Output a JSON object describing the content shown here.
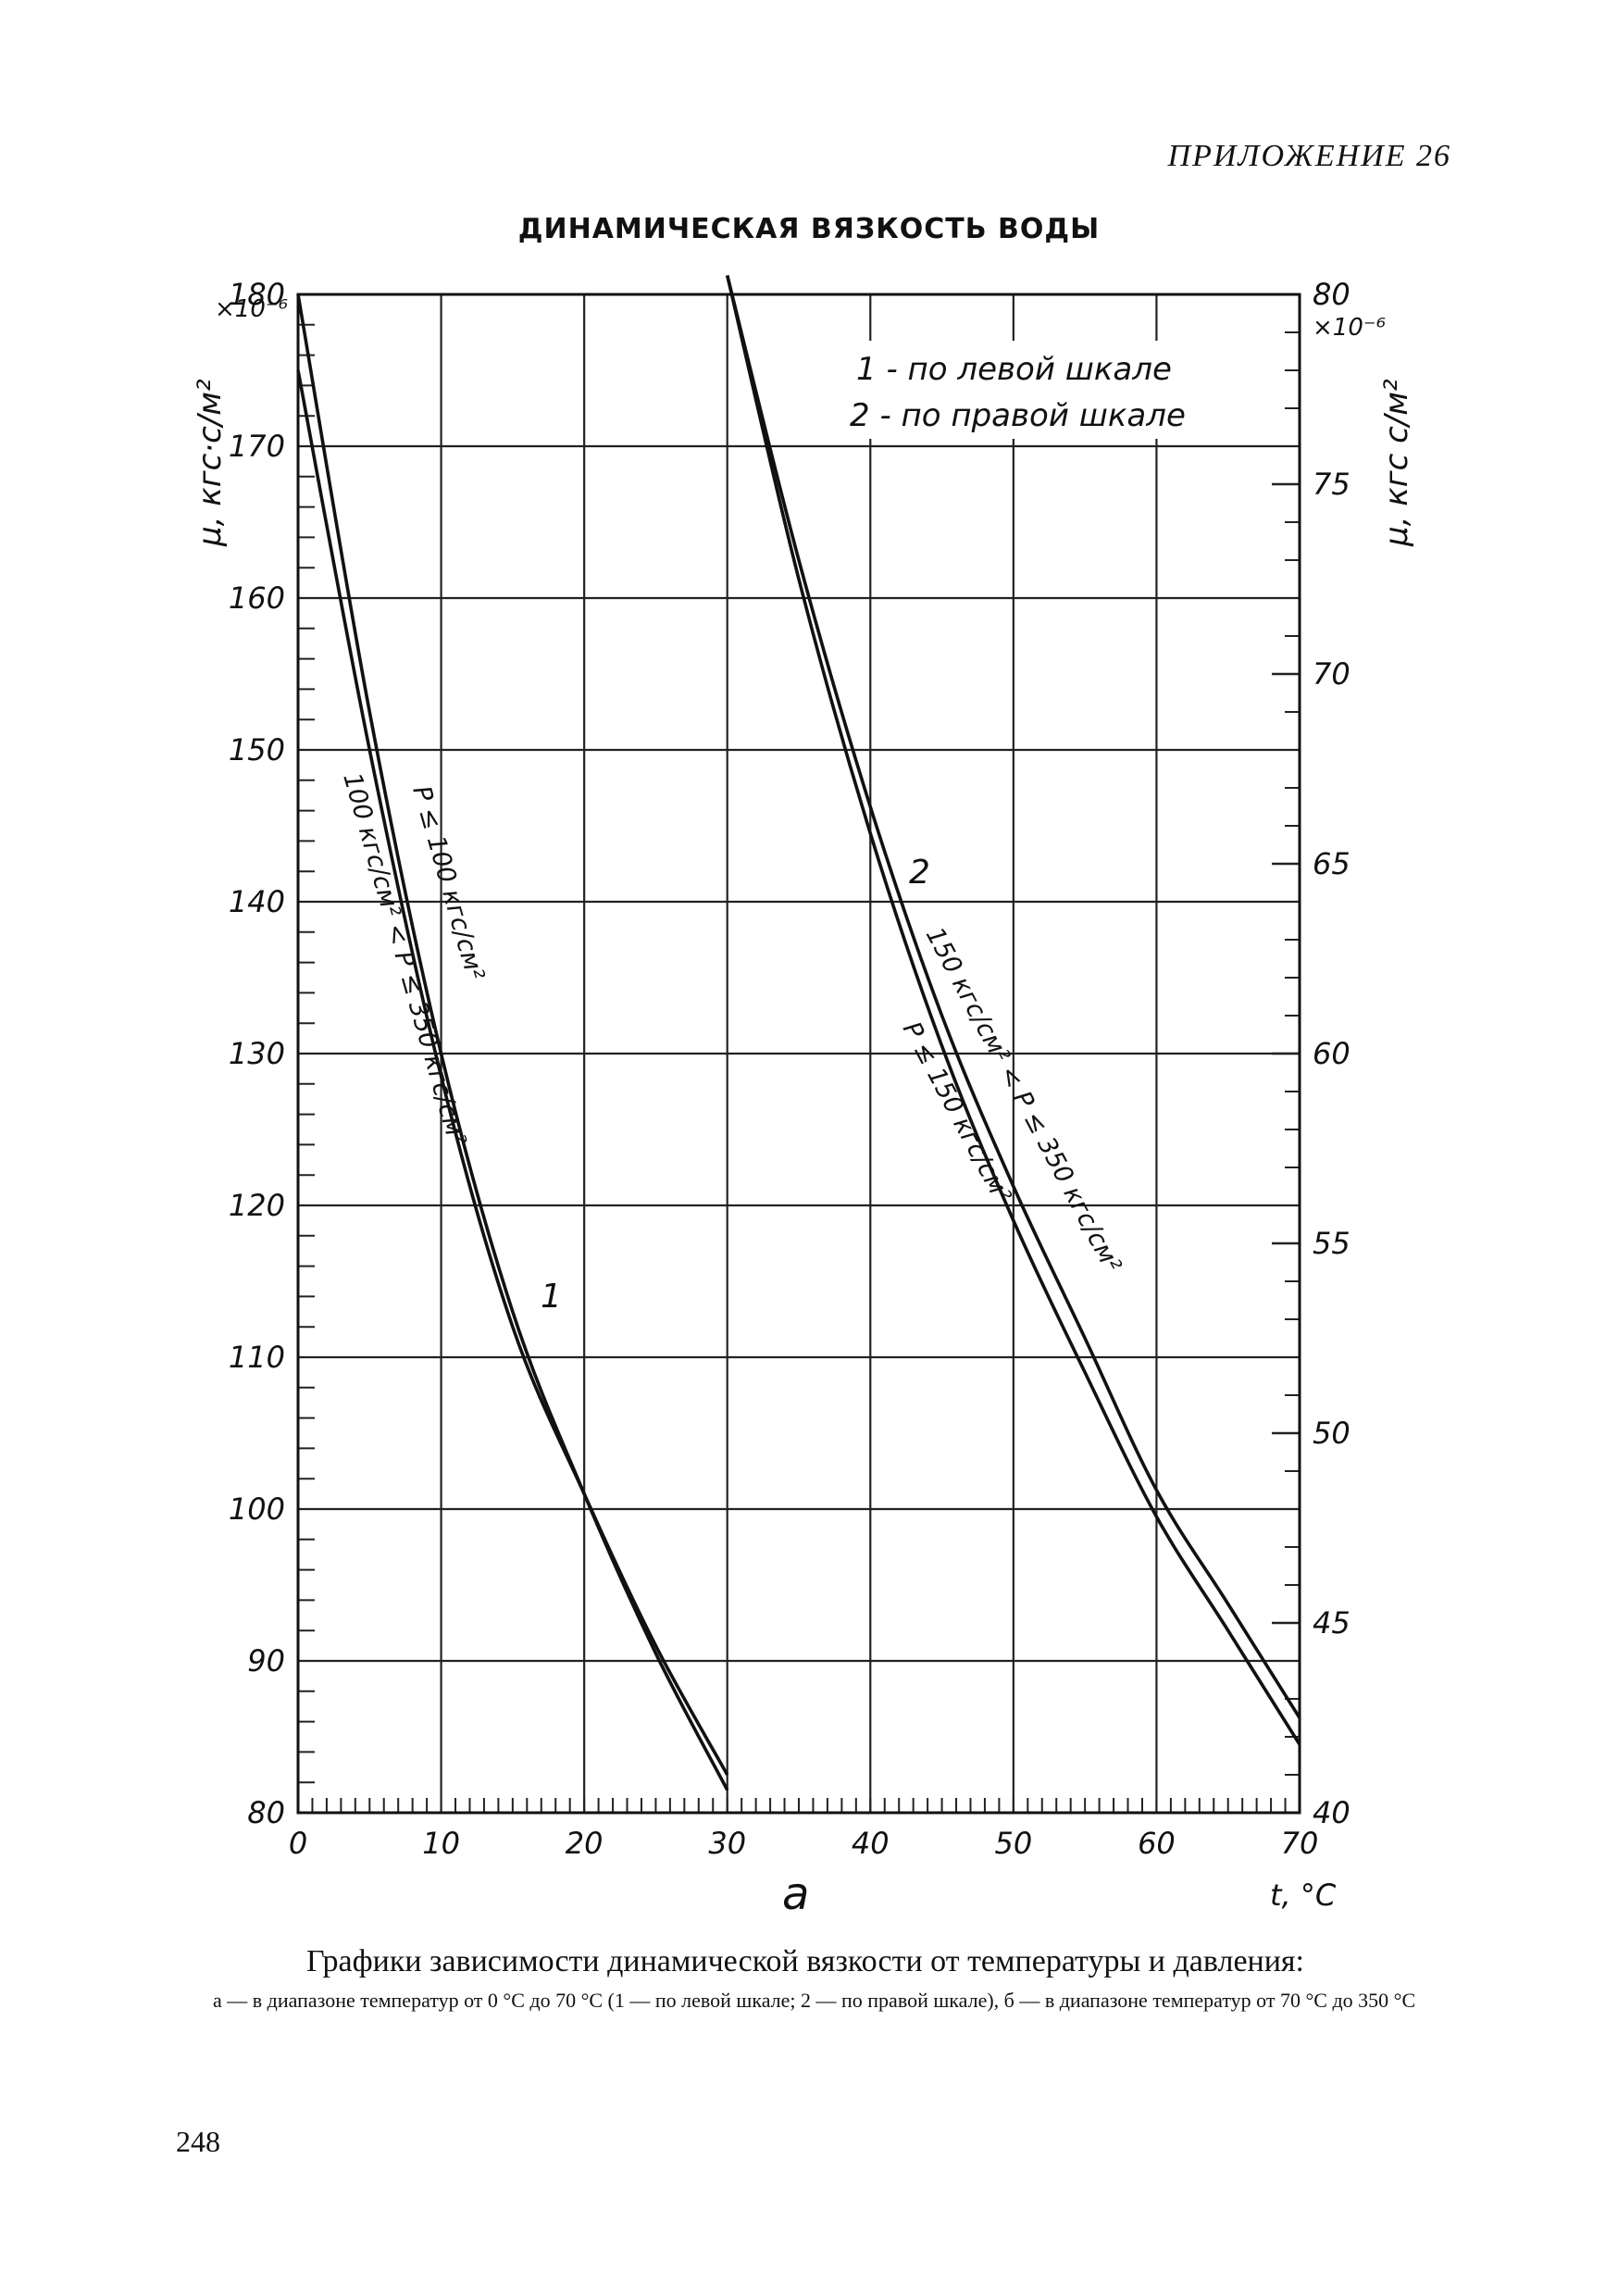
{
  "page": {
    "appendix_label": "ПРИЛОЖЕНИЕ 26",
    "title": "ДИНАМИЧЕСКАЯ ВЯЗКОСТЬ ВОДЫ",
    "caption": "Графики зависимости динамической вязкости от температуры и давления:",
    "caption_detail": "а — в диапазоне температур от 0 °С до 70 °С (1 — по левой шкале; 2 — по правой шкале), б — в диапазоне температур от 70 °С до 350 °С",
    "page_number": "248"
  },
  "chart_data": {
    "type": "line",
    "panel_label": "а",
    "xlabel": "t, °C",
    "ylabel_left": "μ, кгс·с/м²",
    "ylabel_right": "μ, кгс с/м²",
    "left_multiplier": "×10⁻⁶",
    "right_multiplier": "×10⁻⁶",
    "xlim": [
      0,
      70
    ],
    "ylim_left": [
      80,
      180
    ],
    "ylim_right": [
      40,
      80
    ],
    "x_ticks": [
      "0",
      "10",
      "20",
      "30",
      "40",
      "50",
      "60",
      "70"
    ],
    "y_ticks_left": [
      "80",
      "90",
      "100",
      "110",
      "120",
      "130",
      "140",
      "150",
      "160",
      "170",
      "180"
    ],
    "y_ticks_right": [
      "40",
      "45",
      "50",
      "55",
      "60",
      "65",
      "70",
      "75",
      "80"
    ],
    "grid": true,
    "legend_position": "top-right",
    "legend": [
      "1 - по левой шкале",
      "2 - по правой шкале"
    ],
    "curve_labels": [
      "1",
      "2"
    ],
    "series": [
      {
        "group": "1",
        "axis": "left",
        "label": "P ≤ 100 кгс/см²",
        "x": [
          0,
          5,
          10,
          15,
          20,
          25,
          30
        ],
        "y": [
          180,
          152.5,
          130,
          113,
          101,
          90.5,
          81.5
        ]
      },
      {
        "group": "1",
        "axis": "left",
        "label": "100 кгс/см² < P ≤ 350 кгс/см²",
        "x": [
          0,
          5,
          10,
          15,
          20,
          25,
          30
        ],
        "y": [
          175,
          150,
          128.5,
          112,
          101,
          91,
          82.5
        ]
      },
      {
        "group": "2",
        "axis": "right",
        "label": "150 кгс/см² < P ≤ 350 кгс/см²",
        "x": [
          30,
          35,
          40,
          45,
          50,
          55,
          60,
          65,
          70
        ],
        "y": [
          80.5,
          73,
          66.5,
          61,
          56.5,
          52.5,
          48.5,
          45.5,
          42.5
        ]
      },
      {
        "group": "2",
        "axis": "right",
        "label": "P ≤ 150 кгс/см²",
        "x": [
          30,
          35,
          40,
          45,
          50,
          55,
          60,
          65,
          70
        ],
        "y": [
          80.5,
          72.5,
          65.8,
          60.2,
          55.6,
          51.6,
          47.8,
          44.8,
          41.8
        ]
      }
    ]
  }
}
